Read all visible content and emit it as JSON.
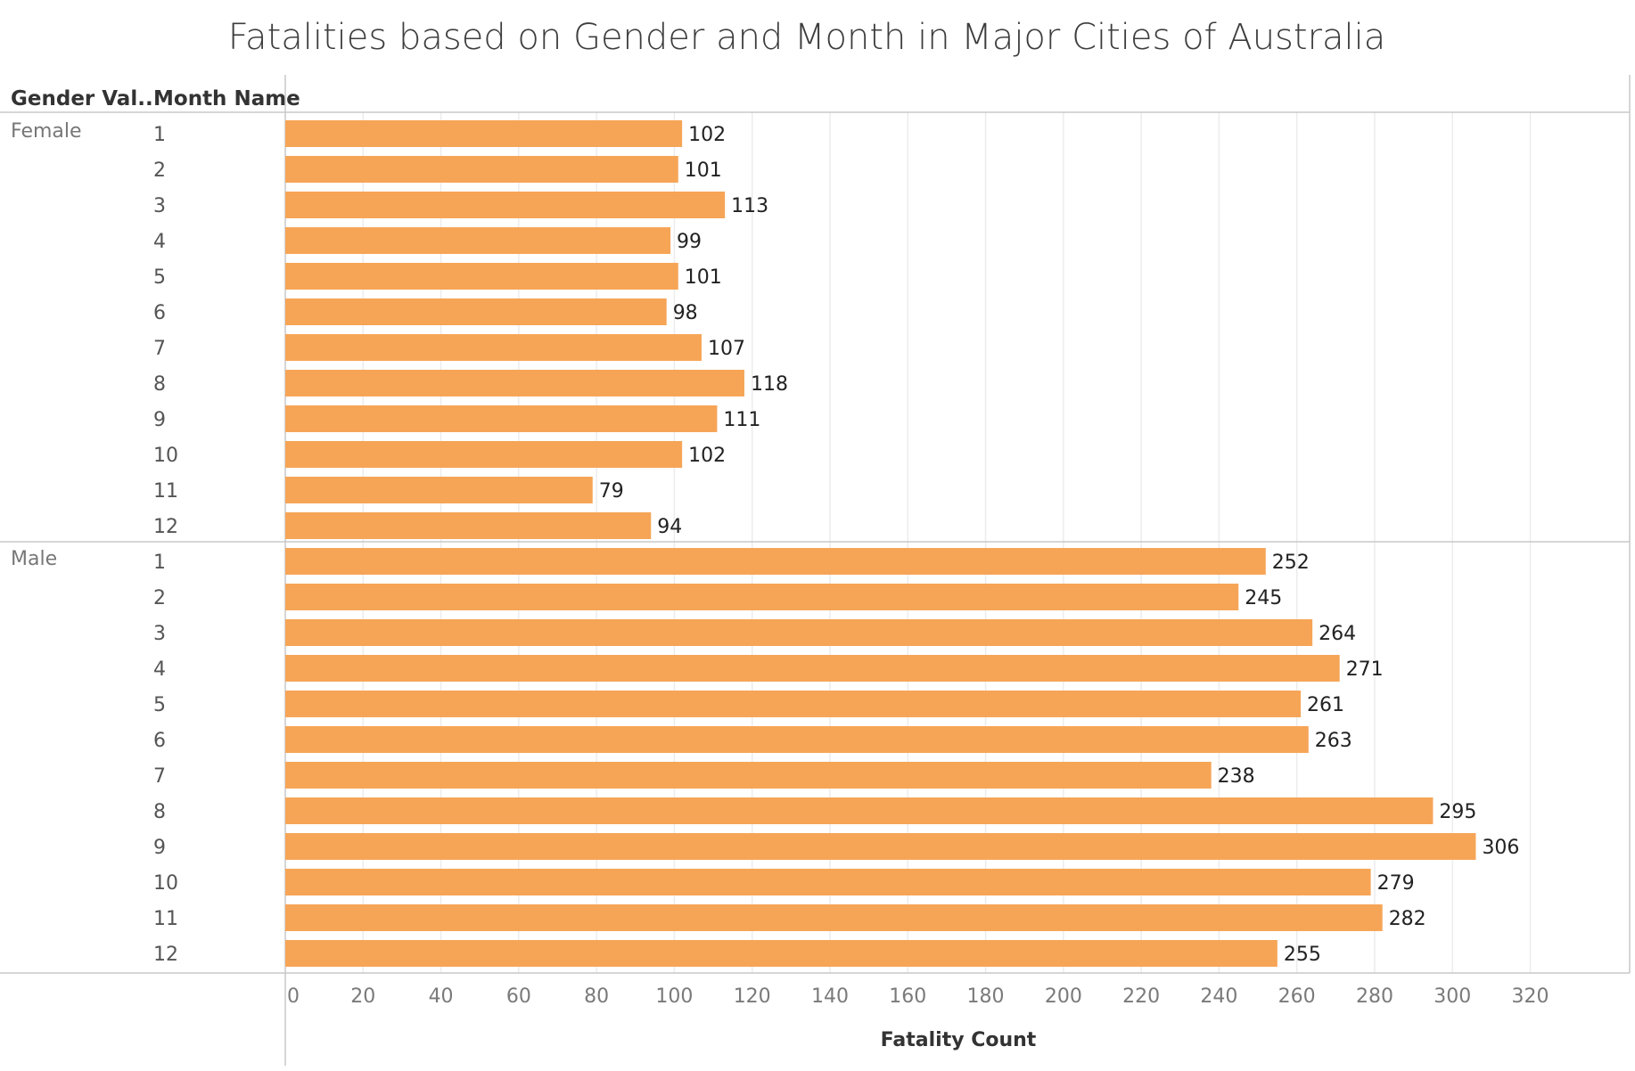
{
  "chart_data": {
    "type": "bar",
    "orientation": "horizontal",
    "title": "Fatalities based on Gender and Month in Major Cities of Australia",
    "row_headers": [
      "Gender Val..",
      "Month Name"
    ],
    "xlabel": "Fatality Count",
    "xlim": [
      0,
      335
    ],
    "xticks": [
      0,
      20,
      40,
      60,
      80,
      100,
      120,
      140,
      160,
      180,
      200,
      220,
      240,
      260,
      280,
      300,
      320
    ],
    "grid": "vertical",
    "data_labels": true,
    "bar_color": "#f6a557",
    "groups": [
      {
        "name": "Female",
        "categories": [
          "1",
          "2",
          "3",
          "4",
          "5",
          "6",
          "7",
          "8",
          "9",
          "10",
          "11",
          "12"
        ],
        "values": [
          102,
          101,
          113,
          99,
          101,
          98,
          107,
          118,
          111,
          102,
          79,
          94
        ]
      },
      {
        "name": "Male",
        "categories": [
          "1",
          "2",
          "3",
          "4",
          "5",
          "6",
          "7",
          "8",
          "9",
          "10",
          "11",
          "12"
        ],
        "values": [
          252,
          245,
          264,
          271,
          261,
          263,
          238,
          295,
          306,
          279,
          282,
          255
        ]
      }
    ]
  }
}
